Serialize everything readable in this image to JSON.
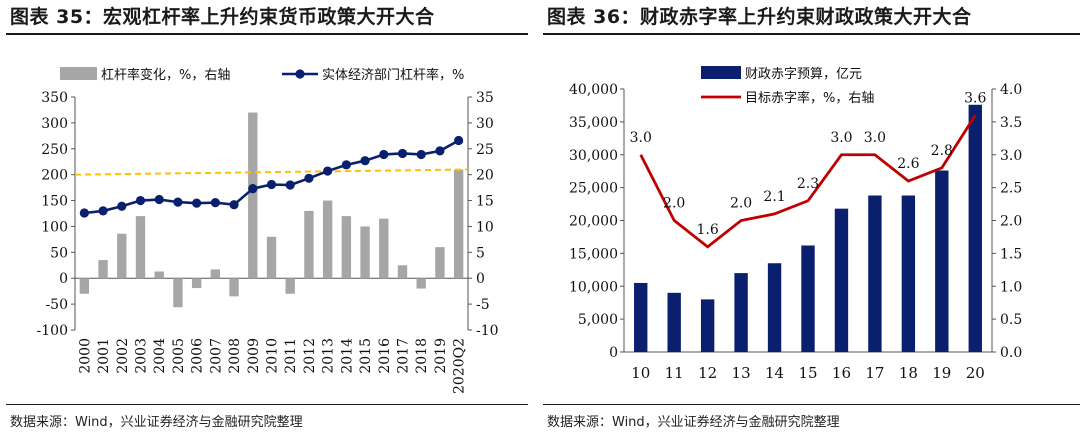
{
  "left": {
    "title": "图表 35：宏观杠杆率上升约束货币政策大开大合",
    "source": "数据来源：Wind，兴业证券经济与金融研究院整理"
  },
  "right": {
    "title": "图表 36：财政赤字率上升约束财政政策大开大合",
    "source": "数据来源：Wind，兴业证券经济与金融研究院整理"
  },
  "colors": {
    "grey_bar": "#a6a6a6",
    "navy": "#0a1f6e",
    "dark_red": "#c00000",
    "orange_dash": "#ffc000"
  },
  "chart_data": [
    {
      "type": "bar+line",
      "categories": [
        "2000",
        "2001",
        "2002",
        "2003",
        "2004",
        "2005",
        "2006",
        "2007",
        "2008",
        "2009",
        "2010",
        "2011",
        "2012",
        "2013",
        "2014",
        "2015",
        "2016",
        "2017",
        "2018",
        "2019",
        "2020Q2"
      ],
      "series": [
        {
          "name": "杠杆率变化，%，右轴",
          "type": "bar",
          "axis": "right",
          "values": [
            -3,
            3.5,
            8.6,
            12,
            1.3,
            -5.6,
            -1.9,
            1.7,
            -3.5,
            32,
            8,
            -3,
            13,
            15,
            12,
            10,
            11.5,
            2.5,
            -2,
            6,
            21
          ]
        },
        {
          "name": "实体经济部门杠杆率，%",
          "type": "line",
          "axis": "left",
          "values": [
            126,
            130,
            139,
            150,
            152,
            147,
            145,
            146,
            142,
            173,
            181,
            180,
            193,
            207,
            219,
            227,
            239,
            241,
            239,
            246,
            266
          ]
        }
      ],
      "reference_line": {
        "axis": "left",
        "from": 200,
        "to": 210,
        "style": "dashed"
      },
      "yleft": {
        "ticks": [
          "-100",
          "-50",
          "0",
          "50",
          "100",
          "150",
          "200",
          "250",
          "300",
          "350"
        ],
        "lim": [
          -100,
          350
        ]
      },
      "yright": {
        "ticks": [
          "-10",
          "-5",
          "0",
          "5",
          "10",
          "15",
          "20",
          "25",
          "30",
          "35"
        ],
        "lim": [
          -10,
          35
        ]
      },
      "legend": "top"
    },
    {
      "type": "bar+line",
      "categories": [
        "10",
        "11",
        "12",
        "13",
        "14",
        "15",
        "16",
        "17",
        "18",
        "19",
        "20"
      ],
      "series": [
        {
          "name": "财政赤字预算，亿元",
          "type": "bar",
          "axis": "left",
          "values": [
            10500,
            9000,
            8000,
            12000,
            13500,
            16200,
            21800,
            23800,
            23800,
            27600,
            37600
          ]
        },
        {
          "name": "目标赤字率，%，右轴",
          "type": "line",
          "axis": "right",
          "values": [
            3.0,
            2.0,
            1.6,
            2.0,
            2.1,
            2.3,
            3.0,
            3.0,
            2.6,
            2.8,
            3.6
          ],
          "labels": [
            "3.0",
            "2.0",
            "1.6",
            "2.0",
            "2.1",
            "2.3",
            "3.0",
            "3.0",
            "2.6",
            "2.8",
            "3.6"
          ]
        }
      ],
      "yleft": {
        "ticks": [
          "0",
          "5,000",
          "10,000",
          "15,000",
          "20,000",
          "25,000",
          "30,000",
          "35,000",
          "40,000"
        ],
        "lim": [
          0,
          40000
        ]
      },
      "yright": {
        "ticks": [
          "0.0",
          "0.5",
          "1.0",
          "1.5",
          "2.0",
          "2.5",
          "3.0",
          "3.5",
          "4.0"
        ],
        "lim": [
          0,
          4
        ]
      },
      "legend": "top"
    }
  ]
}
